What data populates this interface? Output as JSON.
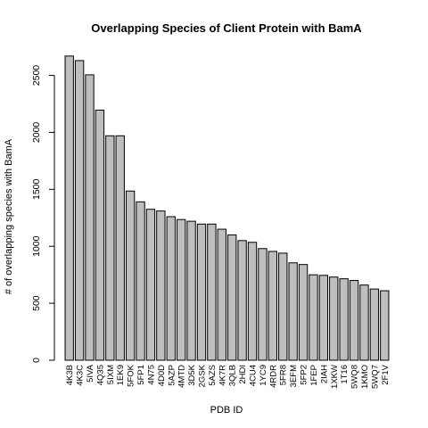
{
  "chart_data": {
    "type": "bar",
    "title": "Overlapping Species of Client Protein with BamA",
    "xlabel": "PDB ID",
    "ylabel": "# of overlapping species with BamA",
    "ylim": [
      0,
      2700
    ],
    "yticks": [
      0,
      500,
      1000,
      1500,
      2000,
      2500
    ],
    "yticklabels": [
      "0",
      "500",
      "1000",
      "1500",
      "2000",
      "2500"
    ],
    "grid": false,
    "bar_color": "#bebebe",
    "categories": [
      "4K3B",
      "4K3C",
      "5IVA",
      "4Q35",
      "5IXM",
      "1EK9",
      "5FOK",
      "5FP1",
      "4N75",
      "4D0D",
      "5AZP",
      "4MTD",
      "3D5K",
      "2GSK",
      "5AZS",
      "4K7R",
      "3QLB",
      "2HDI",
      "4CU4",
      "1YC9",
      "4RDR",
      "5FR8",
      "3EFM",
      "5FP2",
      "1FEP",
      "2IAH",
      "1XKW",
      "1T16",
      "5WQ8",
      "1KMO",
      "5WQ7",
      "2F1V"
    ],
    "values": [
      2670,
      2630,
      2505,
      2195,
      1970,
      1970,
      1485,
      1390,
      1325,
      1310,
      1260,
      1235,
      1220,
      1195,
      1195,
      1150,
      1100,
      1050,
      1035,
      980,
      955,
      940,
      855,
      840,
      750,
      745,
      730,
      715,
      700,
      660,
      625,
      610
    ]
  }
}
